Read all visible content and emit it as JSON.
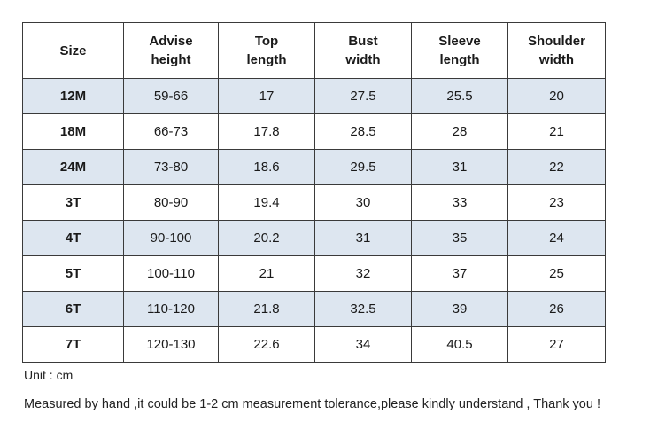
{
  "table": {
    "headers": [
      [
        "Size"
      ],
      [
        "Advise",
        "height"
      ],
      [
        "Top",
        "length"
      ],
      [
        "Bust",
        "width"
      ],
      [
        "Sleeve",
        "length"
      ],
      [
        "Shoulder",
        "width"
      ]
    ],
    "rows": [
      [
        "12M",
        "59-66",
        "17",
        "27.5",
        "25.5",
        "20"
      ],
      [
        "18M",
        "66-73",
        "17.8",
        "28.5",
        "28",
        "21"
      ],
      [
        "24M",
        "73-80",
        "18.6",
        "29.5",
        "31",
        "22"
      ],
      [
        "3T",
        "80-90",
        "19.4",
        "30",
        "33",
        "23"
      ],
      [
        "4T",
        "90-100",
        "20.2",
        "31",
        "35",
        "24"
      ],
      [
        "5T",
        "100-110",
        "21",
        "32",
        "37",
        "25"
      ],
      [
        "6T",
        "110-120",
        "21.8",
        "32.5",
        "39",
        "26"
      ],
      [
        "7T",
        "120-130",
        "22.6",
        "34",
        "40.5",
        "27"
      ]
    ],
    "shaded_row_color": "#dde6f0",
    "border_color": "#3a3a3a"
  },
  "notes": {
    "unit": "Unit : cm",
    "measurement": "Measured by hand ,it could be 1-2 cm measurement tolerance,please kindly understand , Thank you !"
  }
}
